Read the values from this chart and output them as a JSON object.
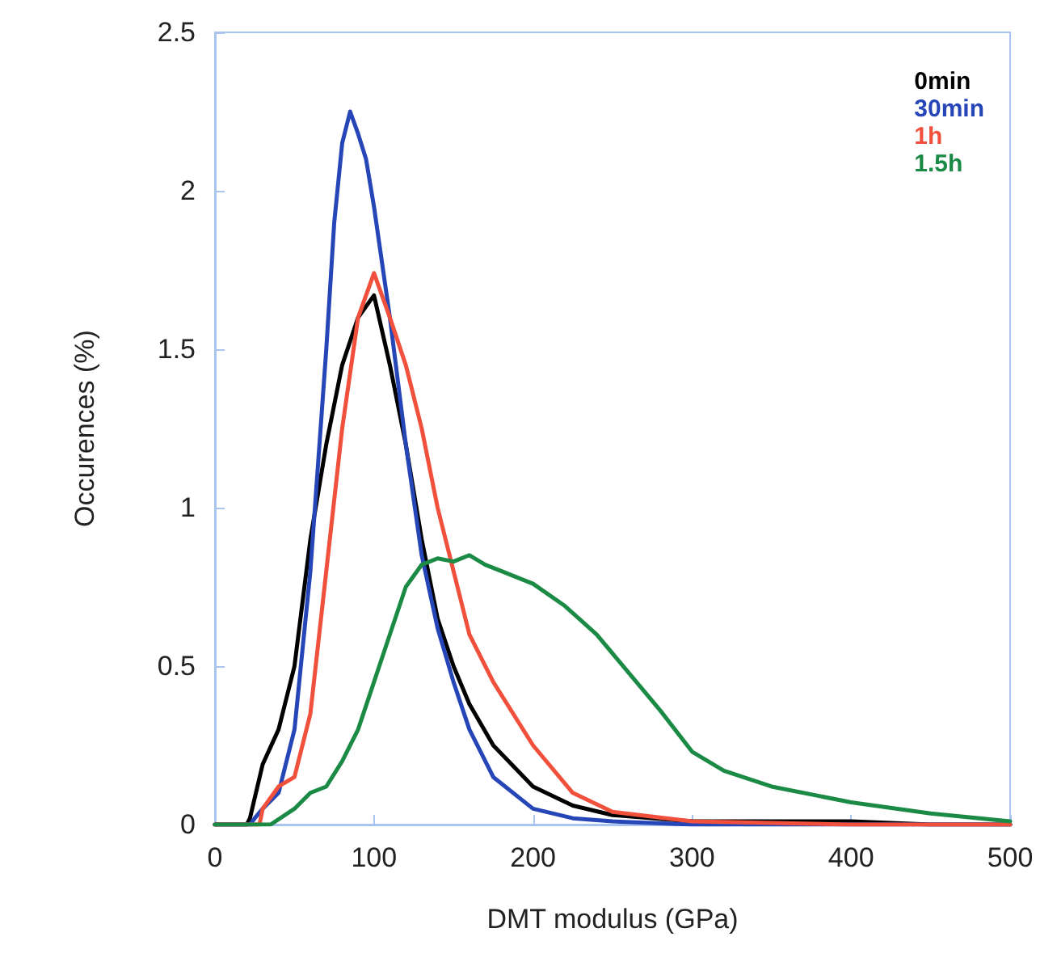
{
  "chart_data": {
    "type": "line",
    "xlabel": "DMT modulus (GPa)",
    "ylabel": "Occurences (%)",
    "xlim": [
      0,
      500
    ],
    "xticks": [
      0,
      100,
      200,
      300,
      400,
      500
    ],
    "ylim": [
      0,
      2.5
    ],
    "yticks": [
      0,
      0.5,
      1,
      1.5,
      2,
      2.5
    ],
    "grid": false,
    "legend": "top right",
    "marker": "none",
    "line_style": "solid",
    "series": [
      {
        "name": "0min",
        "color": "#000000",
        "x": [
          0,
          20,
          22,
          30,
          40,
          50,
          60,
          70,
          80,
          90,
          100,
          110,
          120,
          130,
          140,
          150,
          160,
          175,
          200,
          225,
          250,
          300,
          350,
          400,
          450,
          500
        ],
        "values": [
          0,
          0,
          0.02,
          0.19,
          0.3,
          0.5,
          0.9,
          1.2,
          1.45,
          1.6,
          1.67,
          1.45,
          1.2,
          0.9,
          0.65,
          0.5,
          0.38,
          0.25,
          0.12,
          0.06,
          0.03,
          0.01,
          0.01,
          0.01,
          0,
          0
        ]
      },
      {
        "name": "30min",
        "color": "#2646b8",
        "x": [
          0,
          22,
          25,
          30,
          40,
          50,
          60,
          70,
          75,
          80,
          85,
          90,
          95,
          100,
          110,
          120,
          130,
          140,
          150,
          160,
          175,
          200,
          225,
          250,
          300,
          400,
          500
        ],
        "values": [
          0,
          0,
          0.02,
          0.05,
          0.1,
          0.3,
          0.8,
          1.5,
          1.9,
          2.15,
          2.25,
          2.18,
          2.1,
          1.95,
          1.6,
          1.2,
          0.85,
          0.62,
          0.45,
          0.3,
          0.15,
          0.05,
          0.02,
          0.01,
          0,
          0,
          0
        ]
      },
      {
        "name": "1h",
        "color": "#f0503c",
        "x": [
          0,
          28,
          30,
          40,
          50,
          60,
          70,
          80,
          90,
          100,
          110,
          120,
          130,
          140,
          150,
          160,
          175,
          200,
          225,
          250,
          300,
          400,
          500
        ],
        "values": [
          0,
          0,
          0.05,
          0.12,
          0.15,
          0.35,
          0.8,
          1.25,
          1.6,
          1.74,
          1.6,
          1.45,
          1.25,
          1.0,
          0.8,
          0.6,
          0.45,
          0.25,
          0.1,
          0.04,
          0.01,
          0,
          0
        ]
      },
      {
        "name": "1.5h",
        "color": "#1a8a45",
        "x": [
          0,
          35,
          50,
          60,
          70,
          80,
          90,
          100,
          110,
          120,
          130,
          140,
          150,
          160,
          170,
          180,
          200,
          220,
          240,
          260,
          280,
          300,
          320,
          350,
          400,
          450,
          500
        ],
        "values": [
          0,
          0,
          0.05,
          0.1,
          0.12,
          0.2,
          0.3,
          0.45,
          0.6,
          0.75,
          0.82,
          0.84,
          0.83,
          0.85,
          0.82,
          0.8,
          0.76,
          0.69,
          0.6,
          0.48,
          0.36,
          0.23,
          0.17,
          0.12,
          0.07,
          0.035,
          0.01
        ]
      }
    ]
  }
}
